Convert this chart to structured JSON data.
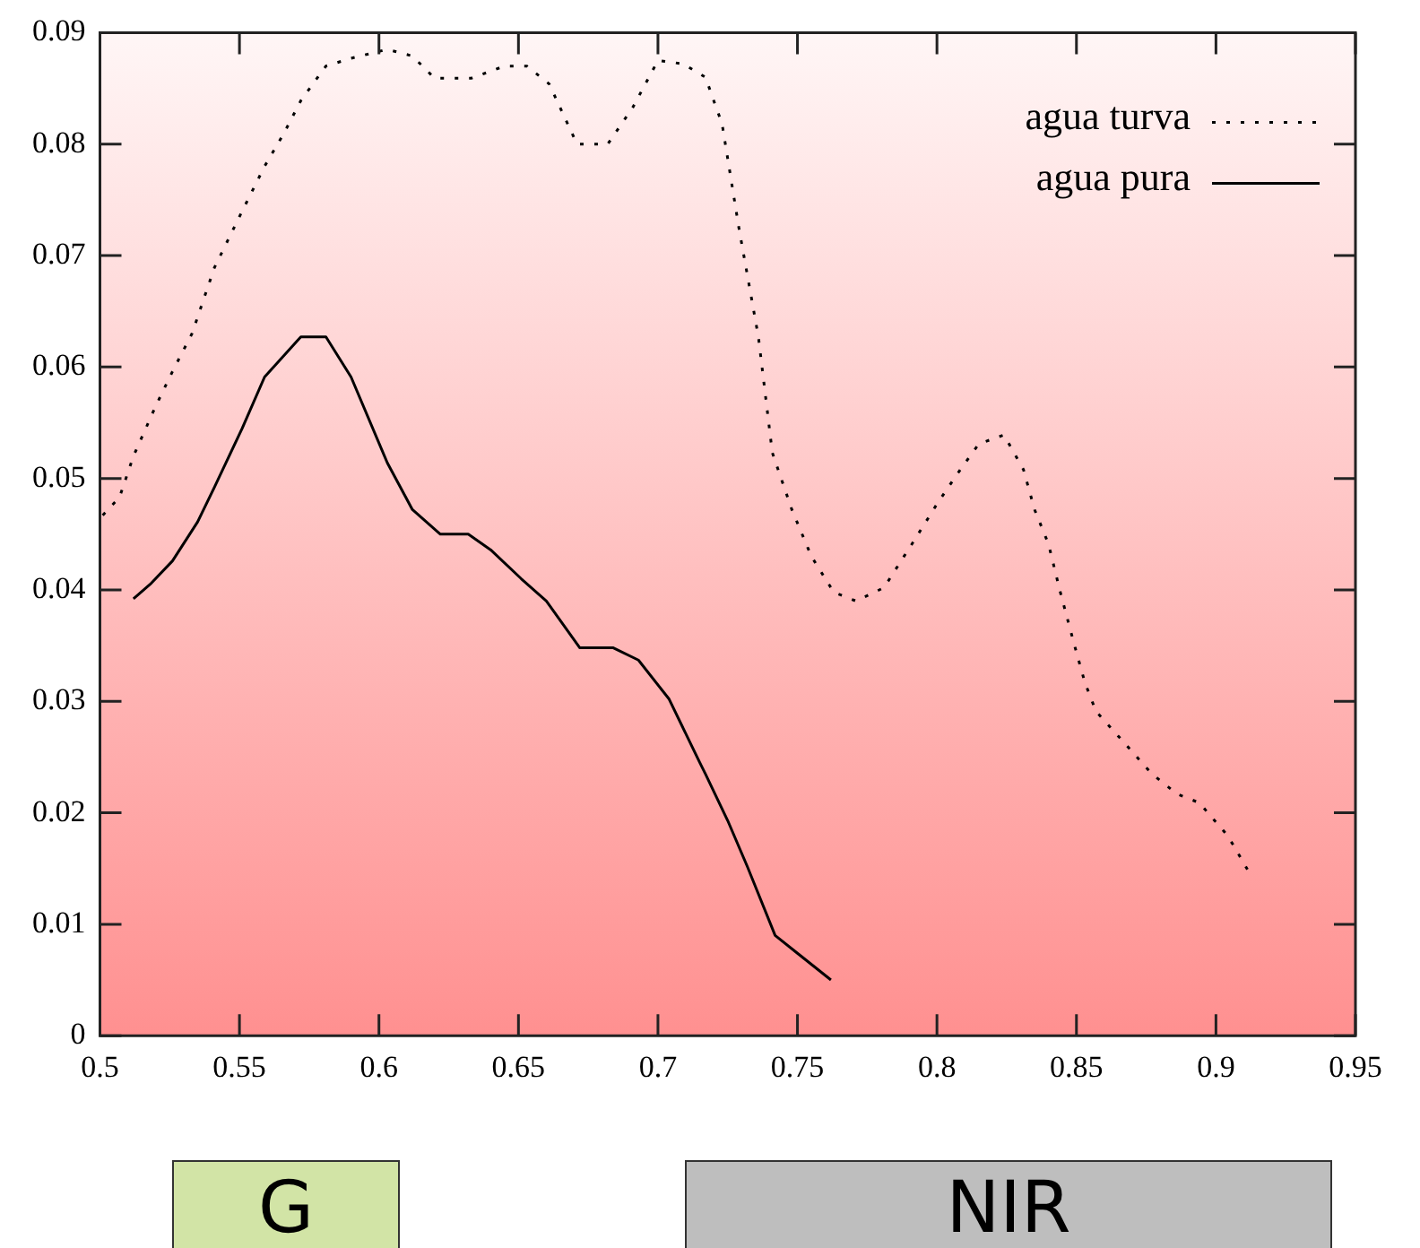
{
  "chart_data": {
    "type": "line",
    "xlim": [
      0.5,
      0.95
    ],
    "xticks": [
      0.5,
      0.55,
      0.6,
      0.65,
      0.7,
      0.75,
      0.8,
      0.85,
      0.9,
      0.95
    ],
    "ylim": [
      0,
      0.09
    ],
    "yticks": [
      0,
      0.01,
      0.02,
      0.03,
      0.04,
      0.05,
      0.06,
      0.07,
      0.08,
      0.09
    ],
    "legend": "top right",
    "series": [
      {
        "name": "agua turva",
        "color": "#000000",
        "line_style": "dotted",
        "x": [
          0.501,
          0.507,
          0.512,
          0.52,
          0.526,
          0.533,
          0.541,
          0.551,
          0.559,
          0.566,
          0.572,
          0.581,
          0.59,
          0.603,
          0.612,
          0.62,
          0.633,
          0.645,
          0.653,
          0.661,
          0.671,
          0.682,
          0.691,
          0.7,
          0.709,
          0.717,
          0.723,
          0.729,
          0.736,
          0.741,
          0.748,
          0.755,
          0.763,
          0.771,
          0.781,
          0.791,
          0.8,
          0.807,
          0.815,
          0.824,
          0.831,
          0.835,
          0.84,
          0.844,
          0.849,
          0.853,
          0.857,
          0.866,
          0.877,
          0.886,
          0.894,
          0.903,
          0.906,
          0.912
        ],
        "values": [
          0.0467,
          0.0483,
          0.052,
          0.0565,
          0.0596,
          0.063,
          0.0689,
          0.074,
          0.078,
          0.081,
          0.0839,
          0.087,
          0.0877,
          0.0885,
          0.0879,
          0.0859,
          0.0859,
          0.087,
          0.087,
          0.0854,
          0.08,
          0.08,
          0.0833,
          0.0875,
          0.0872,
          0.086,
          0.0818,
          0.0725,
          0.0627,
          0.0523,
          0.0472,
          0.043,
          0.0398,
          0.039,
          0.0402,
          0.0441,
          0.0477,
          0.0503,
          0.0531,
          0.0539,
          0.0508,
          0.0472,
          0.0441,
          0.04,
          0.0353,
          0.0317,
          0.0291,
          0.0266,
          0.0235,
          0.0217,
          0.0209,
          0.0183,
          0.0172,
          0.0146
        ]
      },
      {
        "name": "agua pura",
        "color": "#000000",
        "line_style": "solid",
        "x": [
          0.512,
          0.518,
          0.526,
          0.535,
          0.541,
          0.551,
          0.559,
          0.568,
          0.572,
          0.581,
          0.59,
          0.603,
          0.612,
          0.622,
          0.632,
          0.64,
          0.651,
          0.66,
          0.672,
          0.684,
          0.693,
          0.704,
          0.715,
          0.717,
          0.725,
          0.732,
          0.742,
          0.75,
          0.762
        ],
        "values": [
          0.0392,
          0.0405,
          0.0426,
          0.0461,
          0.0492,
          0.0545,
          0.0591,
          0.0616,
          0.0627,
          0.0627,
          0.0591,
          0.0514,
          0.0472,
          0.045,
          0.045,
          0.0436,
          0.041,
          0.039,
          0.0348,
          0.0348,
          0.0337,
          0.0302,
          0.0245,
          0.0235,
          0.0193,
          0.0152,
          0.009,
          0.0074,
          0.005
        ]
      }
    ],
    "annotations": [
      "G",
      "NIR"
    ]
  }
}
